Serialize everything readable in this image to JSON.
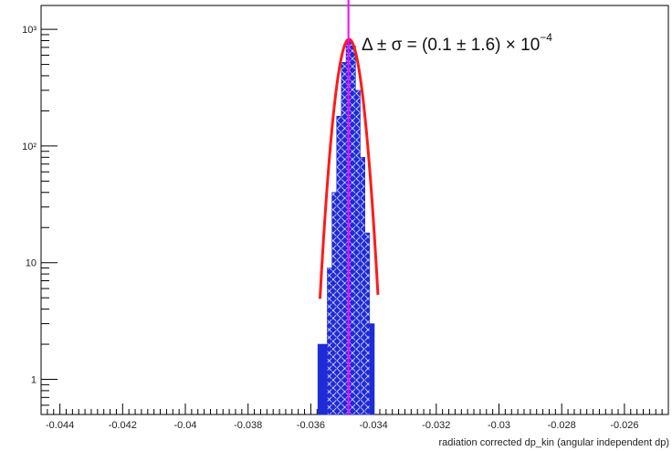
{
  "chart_data": {
    "type": "histogram",
    "title": "",
    "xlabel": "radiation corrected dp_kin (angular independent dp)",
    "ylabel": "",
    "xlim": [
      -0.0446,
      -0.0246
    ],
    "ylim": [
      0.5,
      1600
    ],
    "yscale": "log",
    "x_ticks": [
      -0.044,
      -0.042,
      -0.04,
      -0.038,
      -0.036,
      -0.034,
      -0.032,
      -0.03,
      -0.028,
      -0.026
    ],
    "x_tick_labels": [
      "-0.044",
      "-0.042",
      "-0.04",
      "-0.038",
      "-0.036",
      "-0.034",
      "-0.032",
      "-0.03",
      "-0.028",
      "-0.026"
    ],
    "y_ticks": [
      1,
      10,
      100,
      1000
    ],
    "y_tick_labels": [
      "1",
      "10",
      "10²",
      "10³"
    ],
    "histogram_bins": [
      {
        "x": -0.0357,
        "y": 2
      },
      {
        "x": -0.03555,
        "y": 2
      },
      {
        "x": -0.0354,
        "y": 9
      },
      {
        "x": -0.03525,
        "y": 40
      },
      {
        "x": -0.0351,
        "y": 180
      },
      {
        "x": -0.03495,
        "y": 520
      },
      {
        "x": -0.0348,
        "y": 820
      },
      {
        "x": -0.03465,
        "y": 720
      },
      {
        "x": -0.0345,
        "y": 300
      },
      {
        "x": -0.03435,
        "y": 80
      },
      {
        "x": -0.0342,
        "y": 18
      },
      {
        "x": -0.03405,
        "y": 3
      }
    ],
    "bin_width": 0.00015,
    "fit_curve": {
      "mean": -0.03478,
      "sigma": 0.00029,
      "amplitude": 820
    },
    "mean_line_x": -0.0348,
    "annotation": {
      "prefix": "Δ ± σ = (0.1 ± 1.6) × 10",
      "exponent": "−4"
    },
    "colors": {
      "histogram": "#1f2bd6",
      "hatch": "#ffffff",
      "fit": "#ff1a1a",
      "mean_line": "#ff00ff",
      "axes": "#000000"
    }
  }
}
